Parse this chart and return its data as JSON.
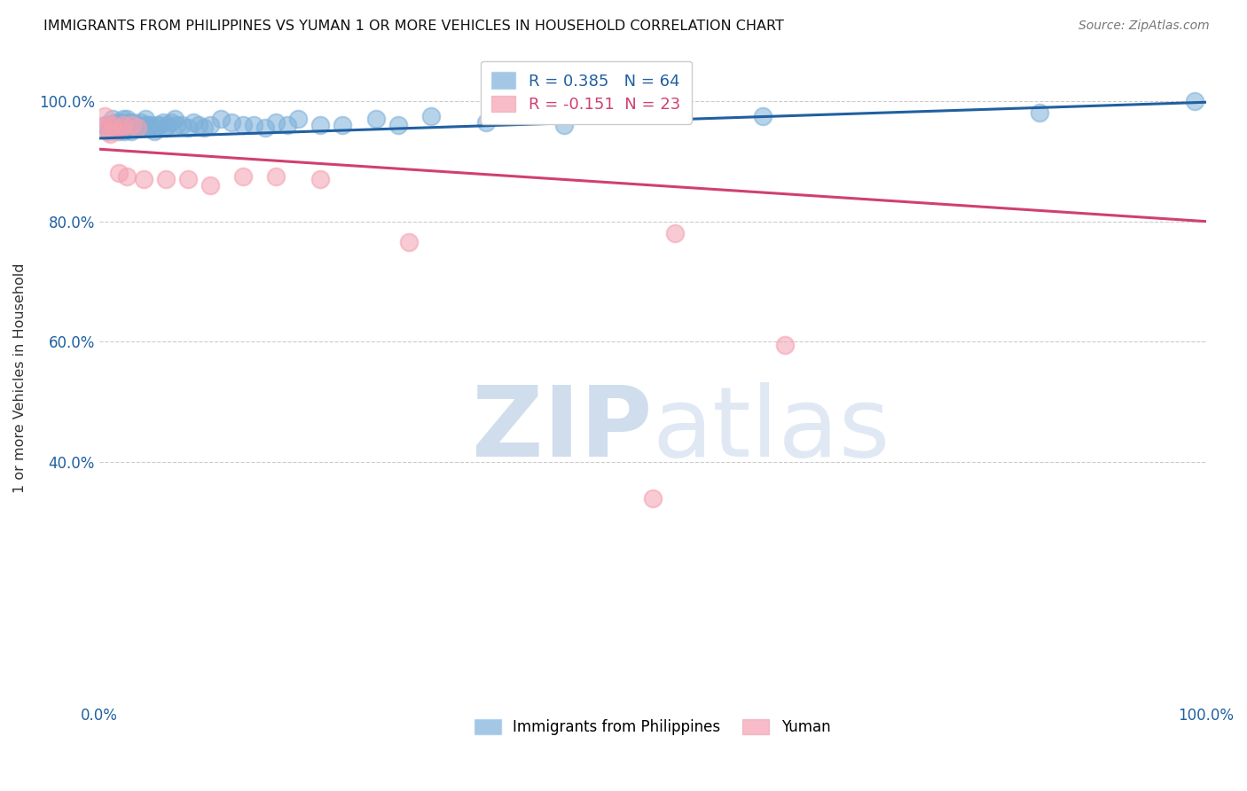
{
  "title": "IMMIGRANTS FROM PHILIPPINES VS YUMAN 1 OR MORE VEHICLES IN HOUSEHOLD CORRELATION CHART",
  "source": "Source: ZipAtlas.com",
  "ylabel": "1 or more Vehicles in Household",
  "blue_R": 0.385,
  "blue_N": 64,
  "pink_R": -0.151,
  "pink_N": 23,
  "blue_color": "#7db0d9",
  "pink_color": "#f4a0b0",
  "blue_line_color": "#2060a0",
  "pink_line_color": "#d04070",
  "blue_scatter_x": [
    0.005,
    0.008,
    0.01,
    0.012,
    0.014,
    0.015,
    0.016,
    0.018,
    0.019,
    0.02,
    0.021,
    0.022,
    0.023,
    0.024,
    0.025,
    0.026,
    0.027,
    0.028,
    0.029,
    0.03,
    0.031,
    0.032,
    0.033,
    0.035,
    0.037,
    0.038,
    0.04,
    0.042,
    0.044,
    0.045,
    0.047,
    0.05,
    0.052,
    0.055,
    0.058,
    0.06,
    0.062,
    0.065,
    0.068,
    0.07,
    0.075,
    0.08,
    0.085,
    0.09,
    0.095,
    0.1,
    0.11,
    0.12,
    0.13,
    0.14,
    0.15,
    0.16,
    0.17,
    0.18,
    0.2,
    0.22,
    0.25,
    0.27,
    0.3,
    0.35,
    0.42,
    0.6,
    0.85,
    0.99
  ],
  "blue_scatter_y": [
    0.96,
    0.95,
    0.96,
    0.97,
    0.96,
    0.965,
    0.955,
    0.95,
    0.96,
    0.965,
    0.96,
    0.97,
    0.95,
    0.96,
    0.97,
    0.955,
    0.965,
    0.96,
    0.95,
    0.96,
    0.965,
    0.955,
    0.96,
    0.96,
    0.955,
    0.965,
    0.96,
    0.97,
    0.96,
    0.955,
    0.96,
    0.95,
    0.96,
    0.96,
    0.965,
    0.955,
    0.96,
    0.965,
    0.97,
    0.96,
    0.96,
    0.955,
    0.965,
    0.96,
    0.955,
    0.96,
    0.97,
    0.965,
    0.96,
    0.96,
    0.955,
    0.965,
    0.96,
    0.97,
    0.96,
    0.96,
    0.97,
    0.96,
    0.975,
    0.965,
    0.96,
    0.975,
    0.98,
    1.0
  ],
  "pink_scatter_x": [
    0.003,
    0.005,
    0.008,
    0.01,
    0.012,
    0.015,
    0.018,
    0.02,
    0.022,
    0.025,
    0.03,
    0.035,
    0.04,
    0.06,
    0.08,
    0.1,
    0.13,
    0.16,
    0.2,
    0.28,
    0.52,
    0.62,
    0.5
  ],
  "pink_scatter_y": [
    0.955,
    0.975,
    0.96,
    0.945,
    0.96,
    0.95,
    0.88,
    0.955,
    0.96,
    0.875,
    0.96,
    0.955,
    0.87,
    0.87,
    0.87,
    0.86,
    0.875,
    0.875,
    0.87,
    0.765,
    0.78,
    0.595,
    0.34
  ],
  "pink_line_start_y": 0.92,
  "pink_line_end_y": 0.8,
  "blue_line_start_y": 0.938,
  "blue_line_end_y": 0.998,
  "xlim": [
    0.0,
    1.0
  ],
  "ylim": [
    0.0,
    1.08
  ],
  "ytick_positions": [
    0.4,
    0.6,
    0.8,
    1.0
  ],
  "ytick_labels": [
    "40.0%",
    "60.0%",
    "80.0%",
    "100.0%"
  ],
  "xtick_positions": [
    0.0,
    0.5,
    1.0
  ],
  "xtick_labels": [
    "0.0%",
    "",
    "100.0%"
  ]
}
